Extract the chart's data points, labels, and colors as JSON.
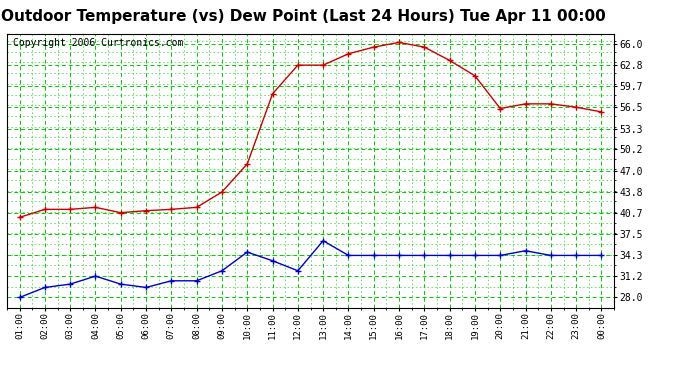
{
  "title": "Outdoor Temperature (vs) Dew Point (Last 24 Hours) Tue Apr 11 00:00",
  "copyright": "Copyright 2006 Curtronics.com",
  "x_labels": [
    "01:00",
    "02:00",
    "03:00",
    "04:00",
    "05:00",
    "06:00",
    "07:00",
    "08:00",
    "09:00",
    "10:00",
    "11:00",
    "12:00",
    "13:00",
    "14:00",
    "15:00",
    "16:00",
    "17:00",
    "18:00",
    "19:00",
    "20:00",
    "21:00",
    "22:00",
    "23:00",
    "00:00"
  ],
  "temp_values": [
    40.0,
    41.2,
    41.2,
    41.5,
    40.7,
    41.0,
    41.2,
    41.5,
    43.8,
    48.0,
    58.5,
    62.8,
    62.8,
    64.5,
    65.5,
    66.2,
    65.5,
    63.5,
    61.2,
    56.3,
    57.0,
    57.0,
    56.5,
    55.8
  ],
  "dew_values": [
    28.0,
    29.5,
    30.0,
    31.2,
    30.0,
    29.5,
    30.5,
    30.5,
    32.0,
    34.8,
    33.5,
    32.0,
    36.5,
    34.3,
    34.3,
    34.3,
    34.3,
    34.3,
    34.3,
    34.3,
    35.0,
    34.3,
    34.3,
    34.3
  ],
  "temp_color": "#cc0000",
  "dew_color": "#0000cc",
  "bg_color": "#ffffff",
  "plot_bg": "#ffffff",
  "grid_color": "#00cc00",
  "y_ticks": [
    28.0,
    31.2,
    34.3,
    37.5,
    40.7,
    43.8,
    47.0,
    50.2,
    53.3,
    56.5,
    59.7,
    62.8,
    66.0
  ],
  "y_min": 26.5,
  "y_max": 67.5,
  "title_fontsize": 11,
  "copyright_fontsize": 7
}
